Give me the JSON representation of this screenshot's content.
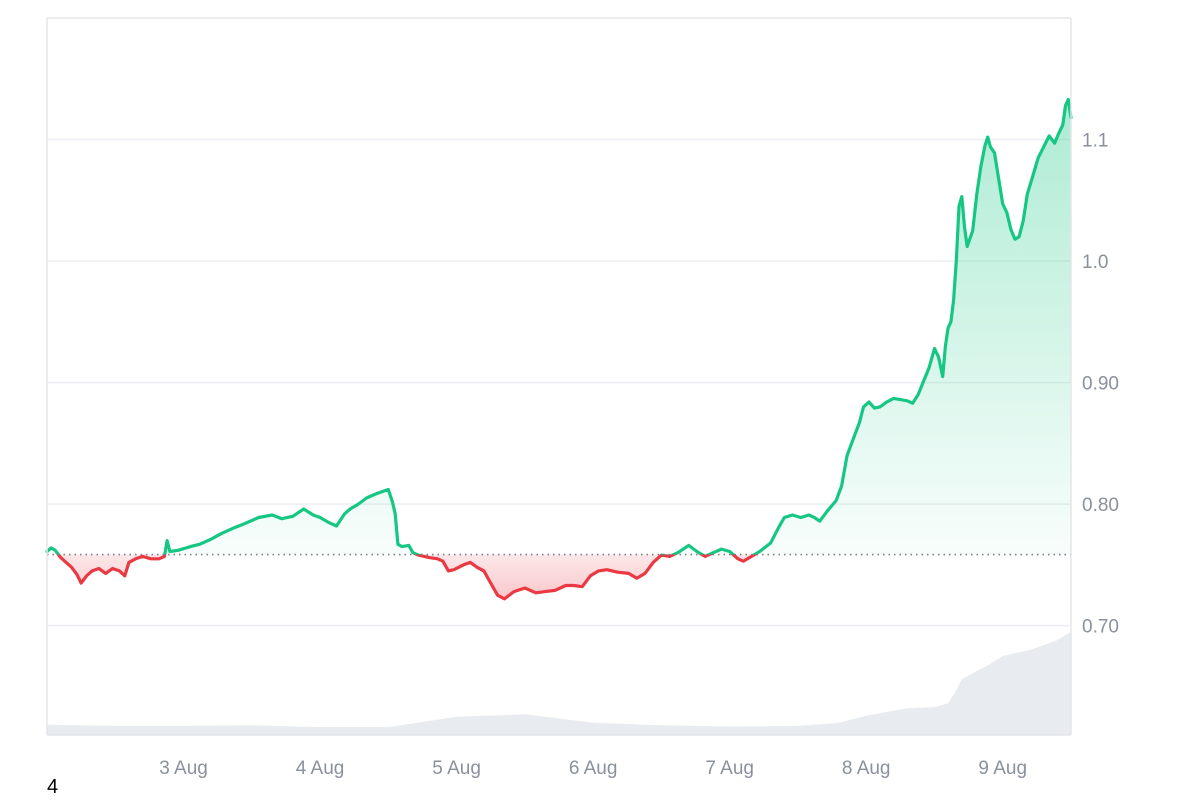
{
  "chart_data": {
    "type": "area",
    "baseline": 0.7585,
    "ylim": [
      0.61,
      1.2
    ],
    "x_range": [
      "2 Aug",
      "9 Aug"
    ],
    "x_ticks": [
      {
        "label": "3 Aug",
        "value": 1
      },
      {
        "label": "4 Aug",
        "value": 2
      },
      {
        "label": "5 Aug",
        "value": 3
      },
      {
        "label": "6 Aug",
        "value": 4
      },
      {
        "label": "7 Aug",
        "value": 5
      },
      {
        "label": "8 Aug",
        "value": 6
      },
      {
        "label": "9 Aug",
        "value": 7
      }
    ],
    "y_ticks": [
      {
        "label": "0.70",
        "value": 0.7
      },
      {
        "label": "0.80",
        "value": 0.8
      },
      {
        "label": "0.90",
        "value": 0.9
      },
      {
        "label": "1.0",
        "value": 1.0
      },
      {
        "label": "1.1",
        "value": 1.1
      }
    ],
    "grid": true,
    "colors": {
      "up_line": "#16c784",
      "down_line": "#ea3943",
      "up_fill": "#16c784",
      "down_fill": "#ea3943",
      "volume": "#e8ecf0",
      "grid": "#eceef1",
      "baseline": "#7b7f86"
    },
    "series": [
      {
        "type": "line",
        "points": [
          [
            0.0,
            0.761
          ],
          [
            0.03,
            0.764
          ],
          [
            0.06,
            0.762
          ],
          [
            0.1,
            0.756
          ],
          [
            0.14,
            0.752
          ],
          [
            0.18,
            0.748
          ],
          [
            0.22,
            0.742
          ],
          [
            0.25,
            0.735
          ],
          [
            0.29,
            0.741
          ],
          [
            0.33,
            0.745
          ],
          [
            0.38,
            0.747
          ],
          [
            0.43,
            0.743
          ],
          [
            0.48,
            0.747
          ],
          [
            0.53,
            0.745
          ],
          [
            0.57,
            0.741
          ],
          [
            0.6,
            0.752
          ],
          [
            0.65,
            0.755
          ],
          [
            0.7,
            0.757
          ],
          [
            0.76,
            0.755
          ],
          [
            0.82,
            0.755
          ],
          [
            0.86,
            0.757
          ],
          [
            0.88,
            0.77
          ],
          [
            0.9,
            0.761
          ],
          [
            0.96,
            0.762
          ],
          [
            1.05,
            0.765
          ],
          [
            1.12,
            0.767
          ],
          [
            1.2,
            0.771
          ],
          [
            1.28,
            0.776
          ],
          [
            1.36,
            0.78
          ],
          [
            1.45,
            0.784
          ],
          [
            1.55,
            0.789
          ],
          [
            1.65,
            0.791
          ],
          [
            1.72,
            0.788
          ],
          [
            1.8,
            0.79
          ],
          [
            1.88,
            0.796
          ],
          [
            1.95,
            0.791
          ],
          [
            2.0,
            0.789
          ],
          [
            2.06,
            0.785
          ],
          [
            2.12,
            0.782
          ],
          [
            2.18,
            0.792
          ],
          [
            2.22,
            0.796
          ],
          [
            2.28,
            0.8
          ],
          [
            2.34,
            0.805
          ],
          [
            2.4,
            0.808
          ],
          [
            2.45,
            0.81
          ],
          [
            2.5,
            0.812
          ],
          [
            2.53,
            0.802
          ],
          [
            2.55,
            0.792
          ],
          [
            2.57,
            0.767
          ],
          [
            2.6,
            0.765
          ],
          [
            2.65,
            0.766
          ],
          [
            2.68,
            0.76
          ],
          [
            2.72,
            0.758
          ],
          [
            2.8,
            0.756
          ],
          [
            2.86,
            0.755
          ],
          [
            2.9,
            0.753
          ],
          [
            2.94,
            0.745
          ],
          [
            2.98,
            0.746
          ],
          [
            3.05,
            0.75
          ],
          [
            3.1,
            0.752
          ],
          [
            3.15,
            0.748
          ],
          [
            3.2,
            0.745
          ],
          [
            3.25,
            0.735
          ],
          [
            3.3,
            0.725
          ],
          [
            3.35,
            0.722
          ],
          [
            3.42,
            0.728
          ],
          [
            3.5,
            0.731
          ],
          [
            3.58,
            0.727
          ],
          [
            3.65,
            0.728
          ],
          [
            3.72,
            0.729
          ],
          [
            3.8,
            0.733
          ],
          [
            3.86,
            0.733
          ],
          [
            3.92,
            0.732
          ],
          [
            3.98,
            0.741
          ],
          [
            4.04,
            0.745
          ],
          [
            4.1,
            0.746
          ],
          [
            4.18,
            0.744
          ],
          [
            4.26,
            0.743
          ],
          [
            4.32,
            0.739
          ],
          [
            4.38,
            0.743
          ],
          [
            4.44,
            0.752
          ],
          [
            4.5,
            0.758
          ],
          [
            4.56,
            0.757
          ],
          [
            4.62,
            0.76
          ],
          [
            4.7,
            0.766
          ],
          [
            4.76,
            0.761
          ],
          [
            4.82,
            0.757
          ],
          [
            4.88,
            0.76
          ],
          [
            4.94,
            0.763
          ],
          [
            5.0,
            0.761
          ],
          [
            5.06,
            0.755
          ],
          [
            5.1,
            0.753
          ],
          [
            5.16,
            0.757
          ],
          [
            5.22,
            0.761
          ],
          [
            5.3,
            0.768
          ],
          [
            5.36,
            0.781
          ],
          [
            5.4,
            0.789
          ],
          [
            5.46,
            0.791
          ],
          [
            5.52,
            0.789
          ],
          [
            5.58,
            0.791
          ],
          [
            5.62,
            0.789
          ],
          [
            5.66,
            0.786
          ],
          [
            5.72,
            0.795
          ],
          [
            5.78,
            0.803
          ],
          [
            5.82,
            0.815
          ],
          [
            5.86,
            0.84
          ],
          [
            5.9,
            0.852
          ],
          [
            5.95,
            0.867
          ],
          [
            5.98,
            0.88
          ],
          [
            6.02,
            0.884
          ],
          [
            6.06,
            0.879
          ],
          [
            6.1,
            0.88
          ],
          [
            6.15,
            0.884
          ],
          [
            6.2,
            0.887
          ],
          [
            6.25,
            0.886
          ],
          [
            6.3,
            0.885
          ],
          [
            6.34,
            0.883
          ],
          [
            6.38,
            0.89
          ],
          [
            6.42,
            0.901
          ],
          [
            6.46,
            0.912
          ],
          [
            6.5,
            0.928
          ],
          [
            6.53,
            0.921
          ],
          [
            6.56,
            0.905
          ],
          [
            6.58,
            0.93
          ],
          [
            6.6,
            0.945
          ],
          [
            6.62,
            0.95
          ],
          [
            6.64,
            0.968
          ],
          [
            6.66,
            1.0
          ],
          [
            6.68,
            1.045
          ],
          [
            6.7,
            1.053
          ],
          [
            6.72,
            1.028
          ],
          [
            6.74,
            1.012
          ],
          [
            6.78,
            1.025
          ],
          [
            6.81,
            1.055
          ],
          [
            6.84,
            1.078
          ],
          [
            6.87,
            1.095
          ],
          [
            6.89,
            1.102
          ],
          [
            6.91,
            1.094
          ],
          [
            6.94,
            1.089
          ],
          [
            6.97,
            1.068
          ],
          [
            7.0,
            1.047
          ],
          [
            7.03,
            1.04
          ],
          [
            7.06,
            1.026
          ],
          [
            7.09,
            1.018
          ],
          [
            7.12,
            1.02
          ],
          [
            7.15,
            1.033
          ],
          [
            7.18,
            1.055
          ],
          [
            7.22,
            1.07
          ],
          [
            7.26,
            1.085
          ],
          [
            7.3,
            1.094
          ],
          [
            7.34,
            1.103
          ],
          [
            7.38,
            1.097
          ],
          [
            7.41,
            1.105
          ],
          [
            7.44,
            1.112
          ],
          [
            7.46,
            1.128
          ],
          [
            7.48,
            1.133
          ],
          [
            7.5,
            1.118
          ]
        ]
      },
      {
        "type": "volume",
        "points": [
          [
            0.0,
            0.6185
          ],
          [
            0.5,
            0.6175
          ],
          [
            1.0,
            0.6175
          ],
          [
            1.5,
            0.618
          ],
          [
            2.0,
            0.6165
          ],
          [
            2.5,
            0.6165
          ],
          [
            3.0,
            0.625
          ],
          [
            3.5,
            0.627
          ],
          [
            4.0,
            0.62
          ],
          [
            4.5,
            0.618
          ],
          [
            5.0,
            0.617
          ],
          [
            5.5,
            0.6175
          ],
          [
            5.8,
            0.62
          ],
          [
            6.0,
            0.626
          ],
          [
            6.3,
            0.632
          ],
          [
            6.5,
            0.633
          ],
          [
            6.6,
            0.636
          ],
          [
            6.65,
            0.645
          ],
          [
            6.7,
            0.656
          ],
          [
            6.8,
            0.662
          ],
          [
            6.9,
            0.668
          ],
          [
            7.0,
            0.675
          ],
          [
            7.2,
            0.68
          ],
          [
            7.4,
            0.688
          ],
          [
            7.5,
            0.695
          ]
        ]
      }
    ]
  },
  "footer": {
    "label": "4"
  }
}
